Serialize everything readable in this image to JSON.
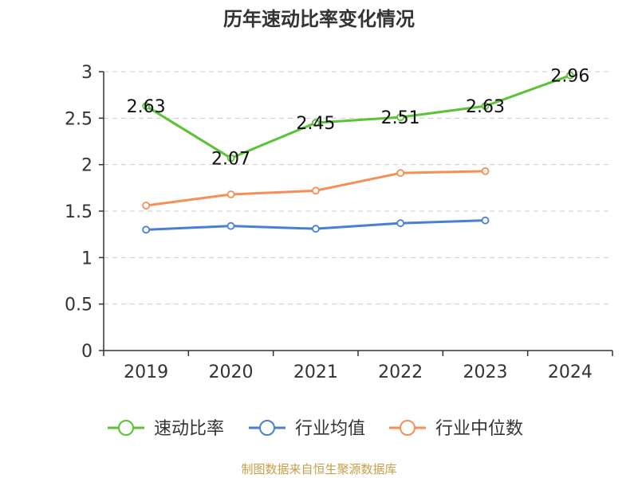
{
  "chart_data": {
    "type": "line",
    "title": "历年速动比率变化情况",
    "categories": [
      "2019",
      "2020",
      "2021",
      "2022",
      "2023",
      "2024"
    ],
    "ylim": [
      0,
      3
    ],
    "yticks": [
      "0",
      "0.5",
      "1",
      "1.5",
      "2",
      "2.5",
      "3"
    ],
    "grid": true,
    "legend_position": "bottom",
    "series": [
      {
        "name": "速动比率",
        "color": "#5bc236",
        "values": [
          2.63,
          2.07,
          2.45,
          2.51,
          2.63,
          2.96
        ],
        "labels": [
          "2.63",
          "2.07",
          "2.45",
          "2.51",
          "2.63",
          "2.96"
        ],
        "show_labels": true
      },
      {
        "name": "行业均值",
        "color": "#4a7fd6",
        "values": [
          1.3,
          1.34,
          1.31,
          1.37,
          1.4,
          null
        ],
        "show_labels": false
      },
      {
        "name": "行业中位数",
        "color": "#f78e55",
        "values": [
          1.56,
          1.68,
          1.72,
          1.91,
          1.93,
          null
        ],
        "show_labels": false
      }
    ]
  },
  "footer": {
    "source": "制图数据来自恒生聚源数据库"
  }
}
